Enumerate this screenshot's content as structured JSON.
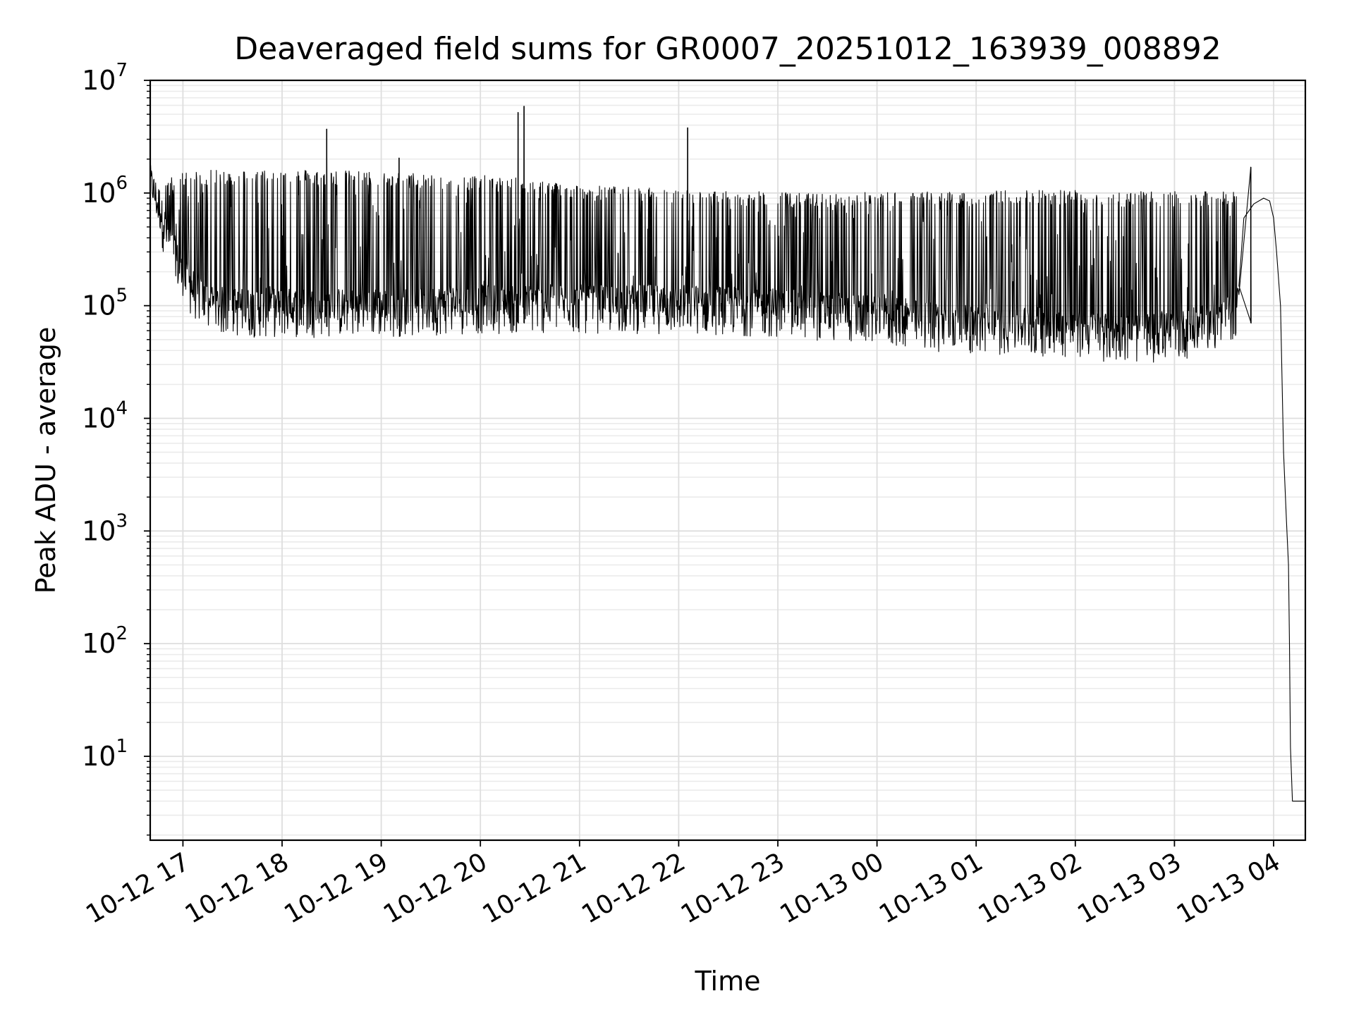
{
  "chart_data": {
    "type": "line",
    "title": "Deaveraged field sums for GR0007_20251012_163939_008892",
    "xlabel": "Time",
    "ylabel": "Peak ADU - average",
    "yscale": "log",
    "ylim": [
      1.8,
      10000000
    ],
    "xlim_hours": [
      16.67,
      28.32
    ],
    "grid": true,
    "x_ticks": [
      {
        "hour": 17,
        "label": "10-12 17"
      },
      {
        "hour": 18,
        "label": "10-12 18"
      },
      {
        "hour": 19,
        "label": "10-12 19"
      },
      {
        "hour": 20,
        "label": "10-12 20"
      },
      {
        "hour": 21,
        "label": "10-12 21"
      },
      {
        "hour": 22,
        "label": "10-12 22"
      },
      {
        "hour": 23,
        "label": "10-12 23"
      },
      {
        "hour": 24,
        "label": "10-13 00"
      },
      {
        "hour": 25,
        "label": "10-13 01"
      },
      {
        "hour": 26,
        "label": "10-13 02"
      },
      {
        "hour": 27,
        "label": "10-13 03"
      },
      {
        "hour": 28,
        "label": "10-13 04"
      }
    ],
    "y_ticks": [
      {
        "base": "10",
        "exp": "1",
        "value": 10
      },
      {
        "base": "10",
        "exp": "2",
        "value": 100
      },
      {
        "base": "10",
        "exp": "3",
        "value": 1000
      },
      {
        "base": "10",
        "exp": "4",
        "value": 10000
      },
      {
        "base": "10",
        "exp": "5",
        "value": 100000
      },
      {
        "base": "10",
        "exp": "6",
        "value": 1000000
      },
      {
        "base": "10",
        "exp": "7",
        "value": 10000000
      }
    ],
    "series": [
      {
        "name": "field sums",
        "color": "#000000",
        "envelope": {
          "hours": [
            16.67,
            16.75,
            17.0,
            17.25,
            17.5,
            18.0,
            18.5,
            19.0,
            19.5,
            20.0,
            20.5,
            21.0,
            21.5,
            22.0,
            22.5,
            23.0,
            23.5,
            24.0,
            24.5,
            25.0,
            25.5,
            26.0,
            26.5,
            27.0,
            27.5,
            27.65
          ],
          "low": [
            1000000,
            500000,
            120000,
            70000,
            65000,
            65000,
            65000,
            65000,
            68000,
            70000,
            70000,
            70000,
            70000,
            70000,
            68000,
            65000,
            60000,
            55000,
            50000,
            45000,
            45000,
            42000,
            38000,
            40000,
            50000,
            70000
          ],
          "high": [
            1800000,
            1200000,
            1500000,
            1550000,
            1550000,
            1600000,
            1550000,
            1500000,
            1450000,
            1400000,
            1300000,
            1150000,
            1100000,
            1050000,
            1000000,
            1000000,
            950000,
            1000000,
            1000000,
            1000000,
            1050000,
            1050000,
            1000000,
            1000000,
            1000000,
            1000000
          ]
        },
        "spikes": [
          {
            "hour": 18.45,
            "value": 3700000
          },
          {
            "hour": 19.18,
            "value": 2050000
          },
          {
            "hour": 20.38,
            "value": 5200000
          },
          {
            "hour": 20.44,
            "value": 5900000
          },
          {
            "hour": 22.09,
            "value": 3800000
          },
          {
            "hour": 27.77,
            "value": 1700000
          }
        ],
        "tail": {
          "hours": [
            27.65,
            27.7,
            27.8,
            27.9,
            27.96,
            28.0,
            28.03,
            28.07,
            28.1,
            28.13,
            28.15,
            28.16,
            28.17,
            28.19,
            28.32
          ],
          "values": [
            150000,
            600000,
            800000,
            900000,
            850000,
            600000,
            300000,
            100000,
            5000,
            1200,
            500,
            100,
            12,
            4,
            4
          ]
        }
      }
    ]
  }
}
